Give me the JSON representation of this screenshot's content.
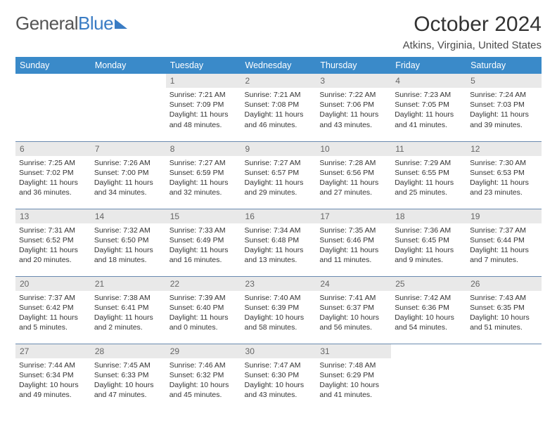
{
  "logo": {
    "part1": "General",
    "part2": "Blue"
  },
  "header": {
    "title": "October 2024",
    "location": "Atkins, Virginia, United States"
  },
  "colors": {
    "header_bg": "#3a8ac9",
    "header_text": "#ffffff",
    "daynum_bg": "#e9e9e9",
    "row_border": "#6a8ab0",
    "logo_accent": "#3a7cc4"
  },
  "weekdays": [
    "Sunday",
    "Monday",
    "Tuesday",
    "Wednesday",
    "Thursday",
    "Friday",
    "Saturday"
  ],
  "weeks": [
    [
      null,
      null,
      {
        "n": "1",
        "sr": "Sunrise: 7:21 AM",
        "ss": "Sunset: 7:09 PM",
        "d1": "Daylight: 11 hours",
        "d2": "and 48 minutes."
      },
      {
        "n": "2",
        "sr": "Sunrise: 7:21 AM",
        "ss": "Sunset: 7:08 PM",
        "d1": "Daylight: 11 hours",
        "d2": "and 46 minutes."
      },
      {
        "n": "3",
        "sr": "Sunrise: 7:22 AM",
        "ss": "Sunset: 7:06 PM",
        "d1": "Daylight: 11 hours",
        "d2": "and 43 minutes."
      },
      {
        "n": "4",
        "sr": "Sunrise: 7:23 AM",
        "ss": "Sunset: 7:05 PM",
        "d1": "Daylight: 11 hours",
        "d2": "and 41 minutes."
      },
      {
        "n": "5",
        "sr": "Sunrise: 7:24 AM",
        "ss": "Sunset: 7:03 PM",
        "d1": "Daylight: 11 hours",
        "d2": "and 39 minutes."
      }
    ],
    [
      {
        "n": "6",
        "sr": "Sunrise: 7:25 AM",
        "ss": "Sunset: 7:02 PM",
        "d1": "Daylight: 11 hours",
        "d2": "and 36 minutes."
      },
      {
        "n": "7",
        "sr": "Sunrise: 7:26 AM",
        "ss": "Sunset: 7:00 PM",
        "d1": "Daylight: 11 hours",
        "d2": "and 34 minutes."
      },
      {
        "n": "8",
        "sr": "Sunrise: 7:27 AM",
        "ss": "Sunset: 6:59 PM",
        "d1": "Daylight: 11 hours",
        "d2": "and 32 minutes."
      },
      {
        "n": "9",
        "sr": "Sunrise: 7:27 AM",
        "ss": "Sunset: 6:57 PM",
        "d1": "Daylight: 11 hours",
        "d2": "and 29 minutes."
      },
      {
        "n": "10",
        "sr": "Sunrise: 7:28 AM",
        "ss": "Sunset: 6:56 PM",
        "d1": "Daylight: 11 hours",
        "d2": "and 27 minutes."
      },
      {
        "n": "11",
        "sr": "Sunrise: 7:29 AM",
        "ss": "Sunset: 6:55 PM",
        "d1": "Daylight: 11 hours",
        "d2": "and 25 minutes."
      },
      {
        "n": "12",
        "sr": "Sunrise: 7:30 AM",
        "ss": "Sunset: 6:53 PM",
        "d1": "Daylight: 11 hours",
        "d2": "and 23 minutes."
      }
    ],
    [
      {
        "n": "13",
        "sr": "Sunrise: 7:31 AM",
        "ss": "Sunset: 6:52 PM",
        "d1": "Daylight: 11 hours",
        "d2": "and 20 minutes."
      },
      {
        "n": "14",
        "sr": "Sunrise: 7:32 AM",
        "ss": "Sunset: 6:50 PM",
        "d1": "Daylight: 11 hours",
        "d2": "and 18 minutes."
      },
      {
        "n": "15",
        "sr": "Sunrise: 7:33 AM",
        "ss": "Sunset: 6:49 PM",
        "d1": "Daylight: 11 hours",
        "d2": "and 16 minutes."
      },
      {
        "n": "16",
        "sr": "Sunrise: 7:34 AM",
        "ss": "Sunset: 6:48 PM",
        "d1": "Daylight: 11 hours",
        "d2": "and 13 minutes."
      },
      {
        "n": "17",
        "sr": "Sunrise: 7:35 AM",
        "ss": "Sunset: 6:46 PM",
        "d1": "Daylight: 11 hours",
        "d2": "and 11 minutes."
      },
      {
        "n": "18",
        "sr": "Sunrise: 7:36 AM",
        "ss": "Sunset: 6:45 PM",
        "d1": "Daylight: 11 hours",
        "d2": "and 9 minutes."
      },
      {
        "n": "19",
        "sr": "Sunrise: 7:37 AM",
        "ss": "Sunset: 6:44 PM",
        "d1": "Daylight: 11 hours",
        "d2": "and 7 minutes."
      }
    ],
    [
      {
        "n": "20",
        "sr": "Sunrise: 7:37 AM",
        "ss": "Sunset: 6:42 PM",
        "d1": "Daylight: 11 hours",
        "d2": "and 5 minutes."
      },
      {
        "n": "21",
        "sr": "Sunrise: 7:38 AM",
        "ss": "Sunset: 6:41 PM",
        "d1": "Daylight: 11 hours",
        "d2": "and 2 minutes."
      },
      {
        "n": "22",
        "sr": "Sunrise: 7:39 AM",
        "ss": "Sunset: 6:40 PM",
        "d1": "Daylight: 11 hours",
        "d2": "and 0 minutes."
      },
      {
        "n": "23",
        "sr": "Sunrise: 7:40 AM",
        "ss": "Sunset: 6:39 PM",
        "d1": "Daylight: 10 hours",
        "d2": "and 58 minutes."
      },
      {
        "n": "24",
        "sr": "Sunrise: 7:41 AM",
        "ss": "Sunset: 6:37 PM",
        "d1": "Daylight: 10 hours",
        "d2": "and 56 minutes."
      },
      {
        "n": "25",
        "sr": "Sunrise: 7:42 AM",
        "ss": "Sunset: 6:36 PM",
        "d1": "Daylight: 10 hours",
        "d2": "and 54 minutes."
      },
      {
        "n": "26",
        "sr": "Sunrise: 7:43 AM",
        "ss": "Sunset: 6:35 PM",
        "d1": "Daylight: 10 hours",
        "d2": "and 51 minutes."
      }
    ],
    [
      {
        "n": "27",
        "sr": "Sunrise: 7:44 AM",
        "ss": "Sunset: 6:34 PM",
        "d1": "Daylight: 10 hours",
        "d2": "and 49 minutes."
      },
      {
        "n": "28",
        "sr": "Sunrise: 7:45 AM",
        "ss": "Sunset: 6:33 PM",
        "d1": "Daylight: 10 hours",
        "d2": "and 47 minutes."
      },
      {
        "n": "29",
        "sr": "Sunrise: 7:46 AM",
        "ss": "Sunset: 6:32 PM",
        "d1": "Daylight: 10 hours",
        "d2": "and 45 minutes."
      },
      {
        "n": "30",
        "sr": "Sunrise: 7:47 AM",
        "ss": "Sunset: 6:30 PM",
        "d1": "Daylight: 10 hours",
        "d2": "and 43 minutes."
      },
      {
        "n": "31",
        "sr": "Sunrise: 7:48 AM",
        "ss": "Sunset: 6:29 PM",
        "d1": "Daylight: 10 hours",
        "d2": "and 41 minutes."
      },
      null,
      null
    ]
  ]
}
